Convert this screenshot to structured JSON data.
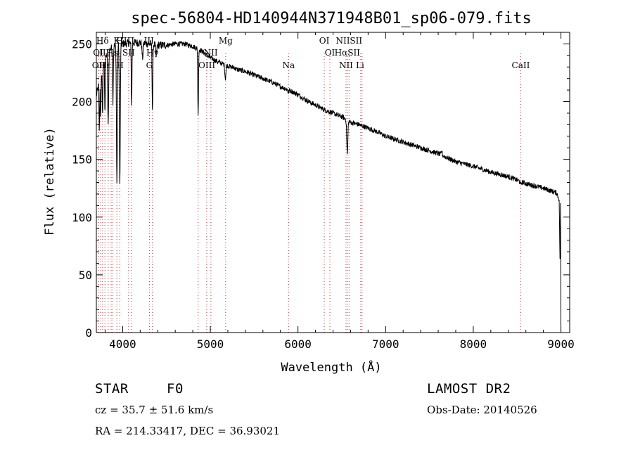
{
  "chart_data": {
    "type": "line",
    "title": "spec-56804-HD140944N371948B01_sp06-079.fits",
    "xlabel": "Wavelength (Å)",
    "ylabel": "Flux (relative)",
    "xlim": [
      3700,
      9100
    ],
    "ylim": [
      0,
      260
    ],
    "xticks": [
      4000,
      5000,
      6000,
      7000,
      8000,
      9000
    ],
    "yticks": [
      0,
      50,
      100,
      150,
      200,
      250
    ],
    "grid": false,
    "series": [
      {
        "continuum": [
          [
            3700,
            205
          ],
          [
            3750,
            225
          ],
          [
            3800,
            238
          ],
          [
            3850,
            245
          ],
          [
            3900,
            248
          ],
          [
            3950,
            249
          ],
          [
            4000,
            250
          ],
          [
            4100,
            251
          ],
          [
            4200,
            251
          ],
          [
            4300,
            250
          ],
          [
            4400,
            249
          ],
          [
            4500,
            249
          ],
          [
            4600,
            250
          ],
          [
            4700,
            250
          ],
          [
            4800,
            248
          ],
          [
            4900,
            244
          ],
          [
            5000,
            238
          ],
          [
            5100,
            234
          ],
          [
            5200,
            231
          ],
          [
            5300,
            228
          ],
          [
            5400,
            226
          ],
          [
            5500,
            223
          ],
          [
            5600,
            220
          ],
          [
            5700,
            217
          ],
          [
            5800,
            213
          ],
          [
            5900,
            210
          ],
          [
            6000,
            206
          ],
          [
            6100,
            201
          ],
          [
            6200,
            197
          ],
          [
            6300,
            193
          ],
          [
            6400,
            190
          ],
          [
            6500,
            187
          ],
          [
            6600,
            182
          ],
          [
            6700,
            180
          ],
          [
            6800,
            177
          ],
          [
            6900,
            174
          ],
          [
            7000,
            170
          ],
          [
            7200,
            165
          ],
          [
            7400,
            160
          ],
          [
            7600,
            155
          ],
          [
            7800,
            148
          ],
          [
            8000,
            144
          ],
          [
            8200,
            139
          ],
          [
            8400,
            135
          ],
          [
            8600,
            129
          ],
          [
            8800,
            125
          ],
          [
            8950,
            121
          ],
          [
            8980,
            115
          ],
          [
            9000,
            0
          ]
        ],
        "absorption": [
          [
            3734,
            175
          ],
          [
            3750,
            185
          ],
          [
            3771,
            190
          ],
          [
            3798,
            192
          ],
          [
            3835,
            178
          ],
          [
            3889,
            200
          ],
          [
            3934,
            128
          ],
          [
            3968,
            127
          ],
          [
            4102,
            196
          ],
          [
            4227,
            238
          ],
          [
            4340,
            192
          ],
          [
            4383,
            240
          ],
          [
            4861,
            187
          ],
          [
            5172,
            220
          ],
          [
            5270,
            230
          ],
          [
            5890,
            208
          ],
          [
            6563,
            154
          ],
          [
            8542,
            128
          ]
        ],
        "emission": [
          [
            7640,
            157
          ]
        ]
      }
    ],
    "lines": [
      {
        "label": "Hδ",
        "x": 3770,
        "row": 1
      },
      {
        "label": "K",
        "x": 3934,
        "row": 1
      },
      {
        "label": "H",
        "x": 3968,
        "row": 1
      },
      {
        "label": "ΠΠ",
        "x": 4050,
        "row": 1
      },
      {
        "label": "III",
        "x": 4300,
        "row": 1
      },
      {
        "label": "OI",
        "x": 3720,
        "row": 2
      },
      {
        "label": "III",
        "x": 3790,
        "row": 2
      },
      {
        "label": "Hs",
        "x": 3880,
        "row": 2
      },
      {
        "label": "SII",
        "x": 4068,
        "row": 2
      },
      {
        "label": "Hγ",
        "x": 4340,
        "row": 2
      },
      {
        "label": "OII",
        "x": 3727,
        "row": 3
      },
      {
        "label": "Hε",
        "x": 3800,
        "row": 3
      },
      {
        "label": "H",
        "x": 3970,
        "row": 3
      },
      {
        "label": "G",
        "x": 4305,
        "row": 3
      },
      {
        "label": "Mg",
        "x": 5175,
        "row": 1
      },
      {
        "label": "NII",
        "x": 5005,
        "row": 2
      },
      {
        "label": "OIII",
        "x": 4960,
        "row": 3
      },
      {
        "label": "Na",
        "x": 5893,
        "row": 3
      },
      {
        "label": "OI",
        "x": 6300,
        "row": 1
      },
      {
        "label": "OI",
        "x": 6364,
        "row": 2
      },
      {
        "label": "NIISII",
        "x": 6583,
        "row": 1
      },
      {
        "label": "HαSII",
        "x": 6563,
        "row": 2
      },
      {
        "label": "NII",
        "x": 6548,
        "row": 3
      },
      {
        "label": "Li",
        "x": 6708,
        "row": 3
      },
      {
        "label": "CaII",
        "x": 8542,
        "row": 3
      }
    ],
    "marker_lines": [
      3727,
      3750,
      3771,
      3798,
      3835,
      3869,
      3889,
      3934,
      3968,
      4068,
      4102,
      4305,
      4340,
      4861,
      4959,
      5007,
      5175,
      5893,
      6300,
      6364,
      6548,
      6563,
      6583,
      6716,
      6731,
      8542
    ]
  },
  "info": {
    "object_class": "STAR",
    "subclass": "F0",
    "survey": "LAMOST DR2",
    "redshift": "cz = 35.7 ± 51.6 km/s",
    "obs_date": "Obs-Date: 20140526",
    "coords": "RA = 214.33417, DEC =  36.93021"
  },
  "colors": {
    "axis": "#000000",
    "spectrum": "#000000",
    "marker": "#cc3333"
  }
}
